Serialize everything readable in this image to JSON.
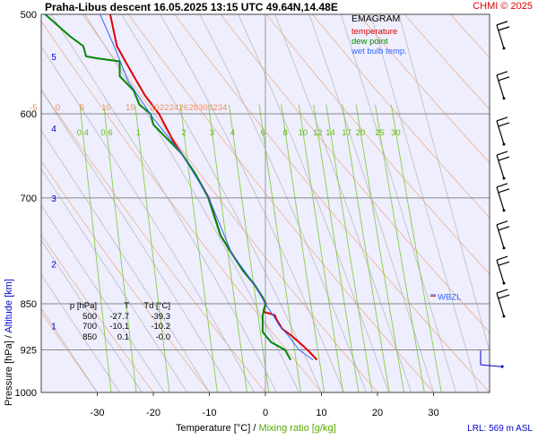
{
  "header": {
    "station_line": "Praha-Libus   descent   16.05.2025 13:15 UTC  49.64N,14.48E",
    "copyright": "CHMI © 2025"
  },
  "legend": {
    "title": "EMAGRAM",
    "temperature": "temperature",
    "dew_point": "dew point",
    "wet_bulb": "wet bulb temp."
  },
  "table": {
    "header": [
      "p [hPa]",
      "T",
      "Td [°C]"
    ],
    "rows": [
      [
        "500",
        "-27.7",
        "-39.3"
      ],
      [
        "700",
        "-10.1",
        "-10.2"
      ],
      [
        "850",
        "0.1",
        "-0.0"
      ]
    ]
  },
  "axes": {
    "xlabel_temperature": "Temperature [°C]",
    "xlabel_sep": "/",
    "xlabel_mixing": "Mixing ratio [g/kg]",
    "ylabel_pressure": "Pressure [hPa]",
    "ylabel_sep": "/",
    "ylabel_altitude": "Altitude [km]",
    "lrl": "LRL: 569 m ASL",
    "wbzl_label": "WBZL"
  },
  "colors": {
    "background": "#eeeeff",
    "temperature": "#dd0000",
    "dew_point": "#008800",
    "wet_bulb": "#3366ff",
    "dry_adiabats": "#f0b08a",
    "moist_adiabats": "#bbbbbb",
    "mixing_ratio": "#88cc44",
    "isobars": "#888888",
    "altitude": "#0000cc"
  },
  "chart_data": {
    "type": "line",
    "title": "EMAGRAM",
    "xlabel": "Temperature [°C]",
    "ylabel": "Pressure [hPa]",
    "xlim": [
      -40,
      40
    ],
    "ylim": [
      1000,
      500
    ],
    "log_y": true,
    "x_ticks": [
      -30,
      -20,
      -10,
      0,
      10,
      20,
      30
    ],
    "y_ticks": [
      500,
      600,
      700,
      850,
      925,
      1000
    ],
    "altitude_ticks_km": [
      {
        "label": "1",
        "p": 885
      },
      {
        "label": "2",
        "p": 790
      },
      {
        "label": "3",
        "p": 700
      },
      {
        "label": "4",
        "p": 616
      },
      {
        "label": "5",
        "p": 540
      }
    ],
    "dry_adiabat_labels": [
      "-5",
      "0",
      "5",
      "10",
      "15",
      "20",
      "22",
      "24",
      "26",
      "28",
      "30",
      "32",
      "34"
    ],
    "mixing_ratio_labels": [
      "0.4",
      "0.6",
      "1",
      "2",
      "3",
      "4",
      "6",
      "8",
      "10",
      "12",
      "14",
      "17",
      "20",
      "25",
      "30"
    ],
    "series": [
      {
        "name": "temperature",
        "points": [
          [
            9.2,
            942
          ],
          [
            7.5,
            925
          ],
          [
            6.0,
            912
          ],
          [
            4.5,
            900
          ],
          [
            3.0,
            890
          ],
          [
            2.0,
            875
          ],
          [
            1.7,
            868
          ],
          [
            1.0,
            866
          ],
          [
            -0.2,
            863
          ],
          [
            -0.3,
            860
          ],
          [
            0.1,
            850
          ],
          [
            -0.5,
            840
          ],
          [
            -2.0,
            820
          ],
          [
            -4.0,
            800
          ],
          [
            -6.0,
            775
          ],
          [
            -8.0,
            750
          ],
          [
            -10.1,
            700
          ],
          [
            -12.5,
            670
          ],
          [
            -15.0,
            645
          ],
          [
            -16.5,
            630
          ],
          [
            -19.0,
            600
          ],
          [
            -21.5,
            580
          ],
          [
            -23.0,
            565
          ],
          [
            -25.0,
            545
          ],
          [
            -26.5,
            530
          ],
          [
            -27.7,
            500
          ]
        ]
      },
      {
        "name": "dew point",
        "points": [
          [
            4.5,
            942
          ],
          [
            3.5,
            925
          ],
          [
            1.0,
            912
          ],
          [
            -0.5,
            895
          ],
          [
            -0.5,
            880
          ],
          [
            -0.5,
            870
          ],
          [
            -0.3,
            860
          ],
          [
            0.0,
            850
          ],
          [
            -0.5,
            840
          ],
          [
            -2.0,
            820
          ],
          [
            -4.0,
            800
          ],
          [
            -6.0,
            775
          ],
          [
            -8.0,
            750
          ],
          [
            -10.2,
            700
          ],
          [
            -12.5,
            670
          ],
          [
            -15.0,
            645
          ],
          [
            -18.0,
            625
          ],
          [
            -20.0,
            612
          ],
          [
            -20.5,
            600
          ],
          [
            -22.5,
            590
          ],
          [
            -23.5,
            575
          ],
          [
            -26.0,
            560
          ],
          [
            -26.0,
            545
          ],
          [
            -30.0,
            542
          ],
          [
            -32.0,
            540
          ],
          [
            -32.5,
            530
          ],
          [
            -35.0,
            520
          ],
          [
            -39.3,
            500
          ]
        ]
      },
      {
        "name": "wet bulb temp.",
        "points": [
          [
            8.5,
            942
          ],
          [
            6.0,
            925
          ],
          [
            4.0,
            900
          ],
          [
            2.5,
            885
          ],
          [
            1.5,
            870
          ],
          [
            0.0,
            850
          ],
          [
            -2.0,
            820
          ],
          [
            -6.0,
            775
          ],
          [
            -10.1,
            700
          ],
          [
            -15.0,
            645
          ],
          [
            -20.0,
            605
          ],
          [
            -24.5,
            565
          ],
          [
            -27.0,
            530
          ],
          [
            -29.5,
            500
          ]
        ]
      }
    ]
  }
}
